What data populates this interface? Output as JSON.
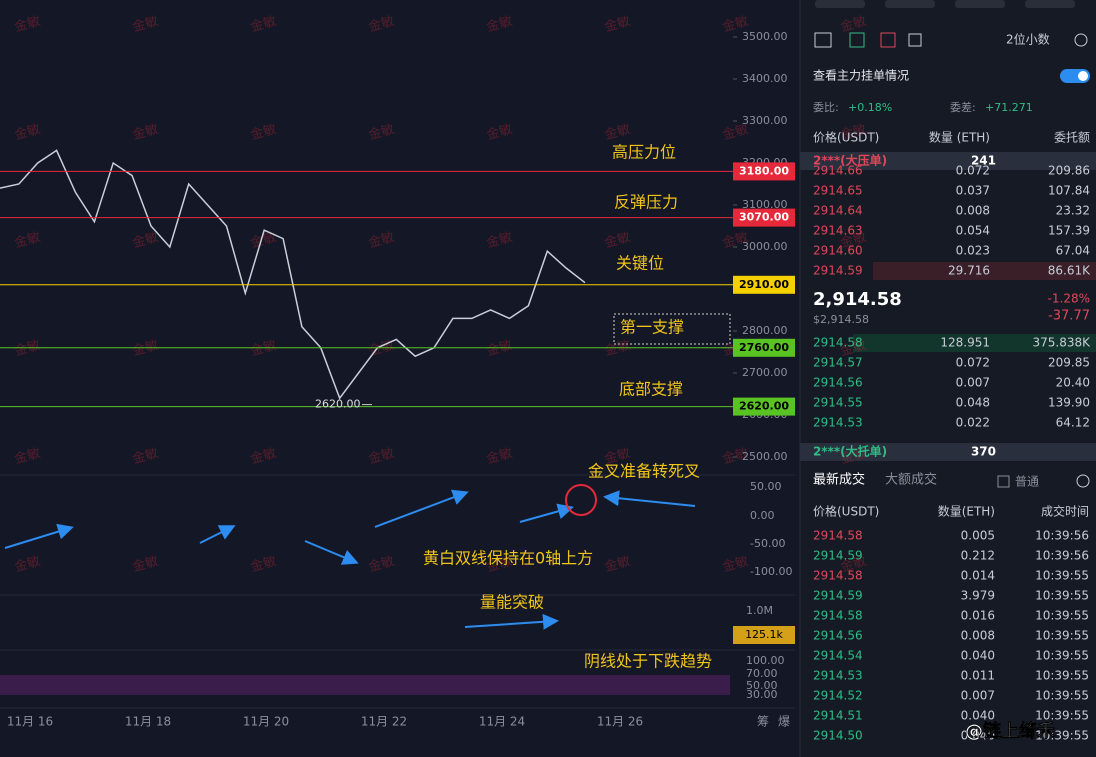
{
  "watermark": "金敏",
  "chart": {
    "price_axis": [
      {
        "value": 3500,
        "label": "3500.00"
      },
      {
        "value": 3400,
        "label": "3400.00"
      },
      {
        "value": 3300,
        "label": "3300.00"
      },
      {
        "value": 3200,
        "label": "3200.00"
      },
      {
        "value": 3100,
        "label": "3100.00"
      },
      {
        "value": 3000,
        "label": "3000.00"
      },
      {
        "value": 2900,
        "label": "2900.00"
      },
      {
        "value": 2800,
        "label": "2800.00"
      },
      {
        "value": 2700,
        "label": "2700.00"
      },
      {
        "value": 2600,
        "label": "2600.00"
      },
      {
        "value": 2500,
        "label": "2500.00"
      }
    ],
    "levels": [
      {
        "value": 3180,
        "label": "3180.00",
        "color": "#e5283a",
        "note": "高压力位"
      },
      {
        "value": 3070,
        "label": "3070.00",
        "color": "#e5283a",
        "note": "反弹压力"
      },
      {
        "value": 2910,
        "label": "2910.00",
        "color": "#f5d000",
        "note": "关键位"
      },
      {
        "value": 2760,
        "label": "2760.00",
        "color": "#58c322",
        "note": "第一支撑"
      },
      {
        "value": 2620,
        "label": "2620.00",
        "color": "#58c322",
        "note": "底部支撑"
      }
    ],
    "low_marker": {
      "value": 2620,
      "label": "2620.00"
    },
    "price_line": [
      3140,
      3150,
      3200,
      3230,
      3130,
      3060,
      3200,
      3170,
      3050,
      3000,
      3150,
      3100,
      3050,
      2890,
      3040,
      3020,
      2810,
      2760,
      2640,
      2700,
      2760,
      2780,
      2740,
      2760,
      2830,
      2830,
      2850,
      2830,
      2860,
      2990,
      2950,
      2915
    ],
    "macd_axis": [
      "50.00",
      "0.00",
      "-50.00",
      "-100.00"
    ],
    "volume_axis": [
      "1.0M"
    ],
    "volume_last": "125.1k",
    "rsi_axis": [
      "100.00",
      "70.00",
      "50.00",
      "30.00"
    ],
    "x_labels": [
      "11月 16",
      "11月 18",
      "11月 20",
      "11月 22",
      "11月 24",
      "11月 26"
    ],
    "side_labels": [
      "筹",
      "爆"
    ],
    "annotations": {
      "macd": "金叉准备转死叉",
      "lines": "黄白双线保持在0轴上方",
      "volume": "量能突破",
      "rsi": "阴线处于下跌趋势"
    }
  },
  "orderbook": {
    "decimals": "2位小数",
    "main_orders": "查看主力挂单情况",
    "ratio_label": "委比:",
    "ratio": "+0.18%",
    "diff_label": "委差:",
    "diff": "+71.271",
    "headers": [
      "价格(USDT)",
      "数量 (ETH)",
      "委托额"
    ],
    "big_ask": {
      "label": "2***(大压单)",
      "qty": "241"
    },
    "asks": [
      [
        "2914.66",
        "0.072",
        "209.86"
      ],
      [
        "2914.65",
        "0.037",
        "107.84"
      ],
      [
        "2914.64",
        "0.008",
        "23.32"
      ],
      [
        "2914.63",
        "0.054",
        "157.39"
      ],
      [
        "2914.60",
        "0.023",
        "67.04"
      ],
      [
        "2914.59",
        "29.716",
        "86.61K"
      ]
    ],
    "mid": "2,914.58",
    "mid_usd": "$2,914.58",
    "change_pct": "-1.28%",
    "change": "-37.77",
    "bids": [
      [
        "2914.58",
        "128.951",
        "375.838K"
      ],
      [
        "2914.57",
        "0.072",
        "209.85"
      ],
      [
        "2914.56",
        "0.007",
        "20.40"
      ],
      [
        "2914.55",
        "0.048",
        "139.90"
      ],
      [
        "2914.53",
        "0.022",
        "64.12"
      ]
    ],
    "big_bid": {
      "label": "2***(大托单)",
      "qty": "370"
    }
  },
  "trades": {
    "tabs": [
      "最新成交",
      "大额成交"
    ],
    "filter": "普通",
    "headers": [
      "价格(USDT)",
      "数量(ETH)",
      "成交时间"
    ],
    "rows": [
      [
        "2914.58",
        "0.005",
        "10:39:56"
      ],
      [
        "2914.59",
        "0.212",
        "10:39:56"
      ],
      [
        "2914.58",
        "0.014",
        "10:39:55"
      ],
      [
        "2914.59",
        "3.979",
        "10:39:55"
      ],
      [
        "2914.58",
        "0.016",
        "10:39:55"
      ],
      [
        "2914.56",
        "0.008",
        "10:39:55"
      ],
      [
        "2914.54",
        "0.040",
        "10:39:55"
      ],
      [
        "2914.53",
        "0.011",
        "10:39:55"
      ],
      [
        "2914.52",
        "0.007",
        "10:39:55"
      ],
      [
        "2914.51",
        "0.040",
        "10:39:55"
      ],
      [
        "2914.50",
        "0.040",
        "10:39:55"
      ]
    ],
    "row_colors": [
      "#e0475a",
      "#2ebd85",
      "#e0475a",
      "#2ebd85",
      "#2ebd85",
      "#2ebd85",
      "#2ebd85",
      "#2ebd85",
      "#2ebd85",
      "#2ebd85",
      "#2ebd85"
    ]
  },
  "brand": "@链上绮禾"
}
